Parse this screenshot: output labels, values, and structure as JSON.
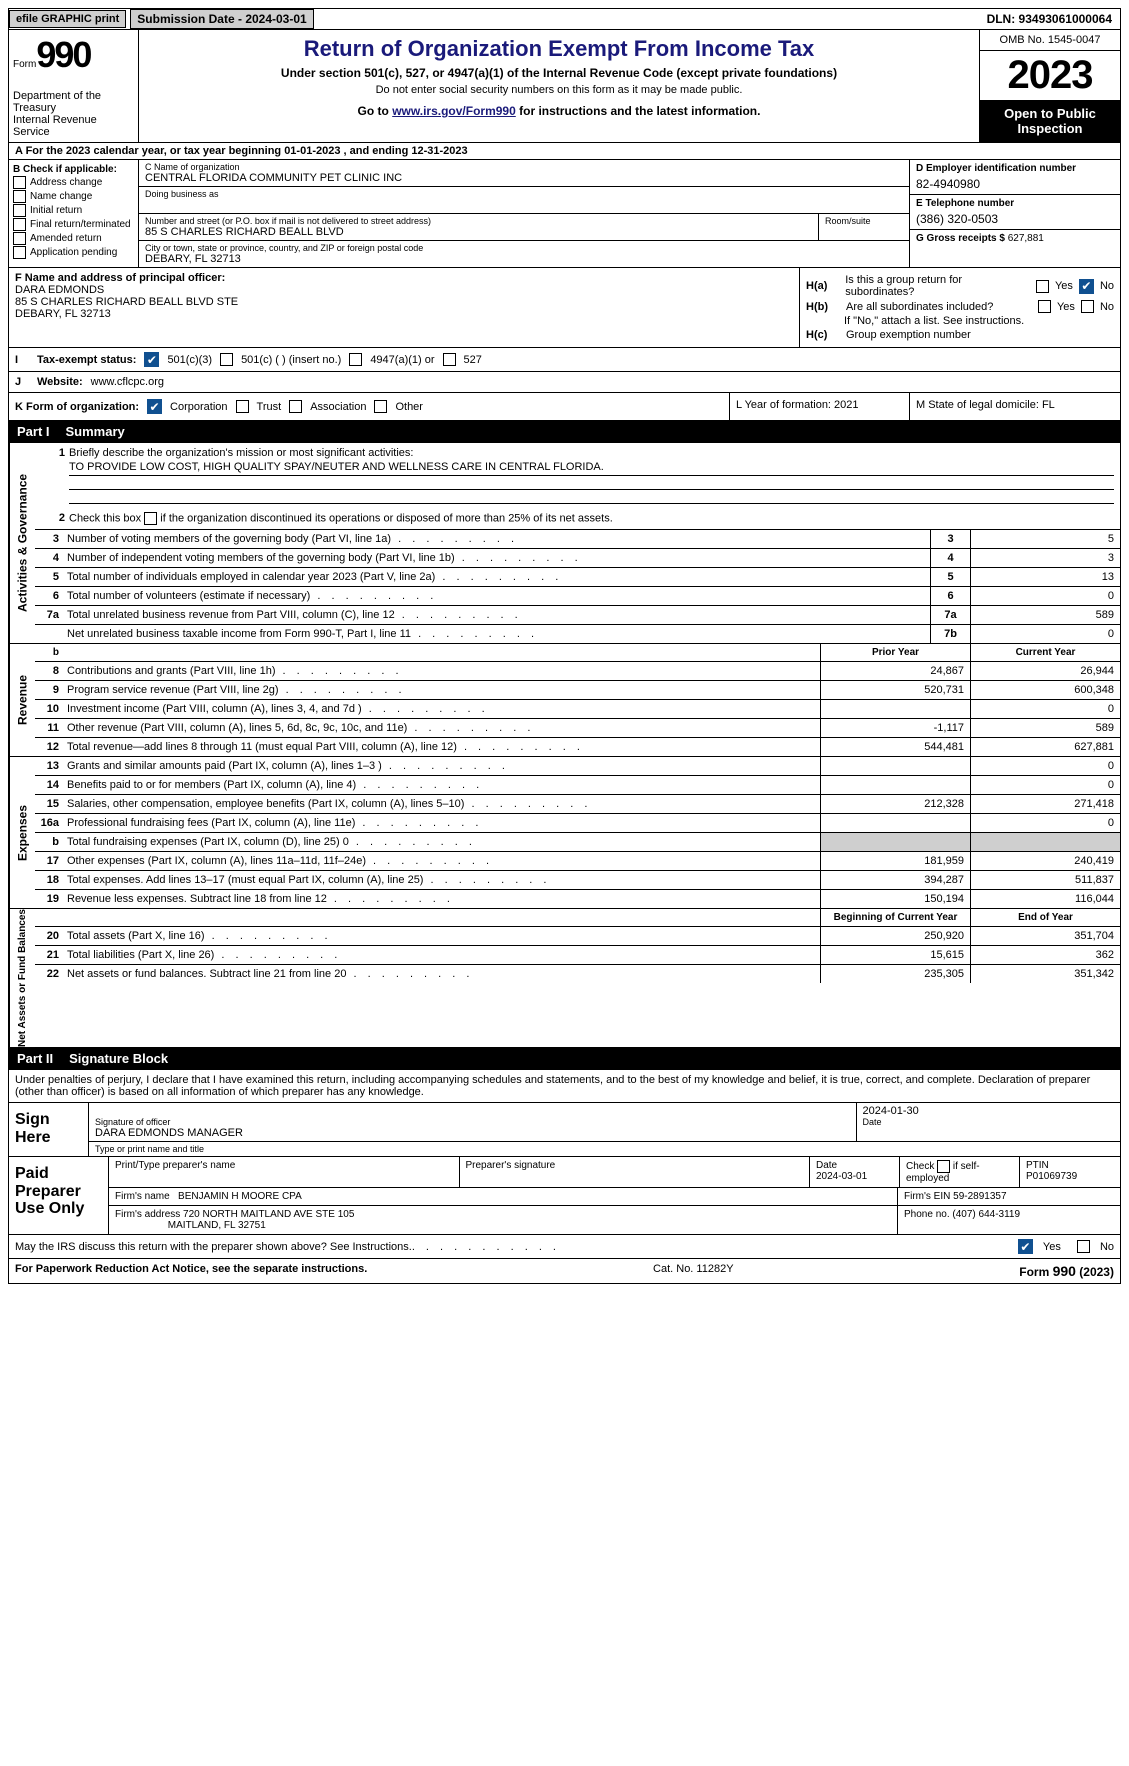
{
  "topbar": {
    "efile": "efile GRAPHIC print",
    "submission": "Submission Date - 2024-03-01",
    "dln": "DLN: 93493061000064"
  },
  "header": {
    "form_label": "Form",
    "form_no": "990",
    "dept": "Department of the Treasury\nInternal Revenue Service",
    "title": "Return of Organization Exempt From Income Tax",
    "sub": "Under section 501(c), 527, or 4947(a)(1) of the Internal Revenue Code (except private foundations)",
    "ssn": "Do not enter social security numbers on this form as it may be made public.",
    "go_prefix": "Go to ",
    "go_link": "www.irs.gov/Form990",
    "go_suffix": " for instructions and the latest information.",
    "omb": "OMB No. 1545-0047",
    "year": "2023",
    "open": "Open to Public Inspection"
  },
  "cal_year": "A For the 2023 calendar year, or tax year beginning 01-01-2023   , and ending 12-31-2023",
  "B": {
    "label": "B Check if applicable:",
    "opts": [
      "Address change",
      "Name change",
      "Initial return",
      "Final return/terminated",
      "Amended return",
      "Application pending"
    ]
  },
  "C": {
    "name_lbl": "C Name of organization",
    "name": "CENTRAL FLORIDA COMMUNITY PET CLINIC INC",
    "dba_lbl": "Doing business as",
    "dba": "",
    "street_lbl": "Number and street (or P.O. box if mail is not delivered to street address)",
    "street": "85 S CHARLES RICHARD BEALL BLVD",
    "room_lbl": "Room/suite",
    "room": "",
    "city_lbl": "City or town, state or province, country, and ZIP or foreign postal code",
    "city": "DEBARY, FL  32713"
  },
  "D": {
    "lbl": "D Employer identification number",
    "val": "82-4940980"
  },
  "E": {
    "lbl": "E Telephone number",
    "val": "(386) 320-0503"
  },
  "G": {
    "lbl": "G Gross receipts $",
    "val": "627,881"
  },
  "F": {
    "lbl": "F  Name and address of principal officer:",
    "l1": "DARA EDMONDS",
    "l2": "85 S CHARLES RICHARD BEALL BLVD STE",
    "l3": "DEBARY, FL  32713"
  },
  "H": {
    "a": "Is this a group return for subordinates?",
    "b": "Are all subordinates included?",
    "note": "If \"No,\" attach a list. See instructions.",
    "c": "Group exemption number"
  },
  "I": {
    "lbl": "Tax-exempt status:",
    "o1": "501(c)(3)",
    "o2": "501(c) (  ) (insert no.)",
    "o3": "4947(a)(1) or",
    "o4": "527"
  },
  "J": {
    "lbl": "Website:",
    "val": "www.cflcpc.org"
  },
  "K": {
    "lbl": "K Form of organization:",
    "opts": [
      "Corporation",
      "Trust",
      "Association",
      "Other"
    ]
  },
  "L": "L Year of formation: 2021",
  "M": "M State of legal domicile: FL",
  "partI": "Part I",
  "partI_t": "Summary",
  "mission": {
    "q1": "Briefly describe the organization's mission or most significant activities:",
    "ans": "TO PROVIDE LOW COST, HIGH QUALITY SPAY/NEUTER AND WELLNESS CARE IN CENTRAL FLORIDA.",
    "q2": "Check this box      if the organization discontinued its operations or disposed of more than 25% of its net assets."
  },
  "gov_lines": [
    {
      "n": "3",
      "d": "Number of voting members of the governing body (Part VI, line 1a)",
      "c": "3",
      "v": "5"
    },
    {
      "n": "4",
      "d": "Number of independent voting members of the governing body (Part VI, line 1b)",
      "c": "4",
      "v": "3"
    },
    {
      "n": "5",
      "d": "Total number of individuals employed in calendar year 2023 (Part V, line 2a)",
      "c": "5",
      "v": "13"
    },
    {
      "n": "6",
      "d": "Total number of volunteers (estimate if necessary)",
      "c": "6",
      "v": "0"
    },
    {
      "n": "7a",
      "d": "Total unrelated business revenue from Part VIII, column (C), line 12",
      "c": "7a",
      "v": "589"
    },
    {
      "n": "",
      "d": "Net unrelated business taxable income from Form 990-T, Part I, line 11",
      "c": "7b",
      "v": "0"
    }
  ],
  "rev_hdr": {
    "prior": "Prior Year",
    "curr": "Current Year"
  },
  "rev_lines": [
    {
      "n": "8",
      "d": "Contributions and grants (Part VIII, line 1h)",
      "p": "24,867",
      "c": "26,944"
    },
    {
      "n": "9",
      "d": "Program service revenue (Part VIII, line 2g)",
      "p": "520,731",
      "c": "600,348"
    },
    {
      "n": "10",
      "d": "Investment income (Part VIII, column (A), lines 3, 4, and 7d )",
      "p": "",
      "c": "0"
    },
    {
      "n": "11",
      "d": "Other revenue (Part VIII, column (A), lines 5, 6d, 8c, 9c, 10c, and 11e)",
      "p": "-1,117",
      "c": "589"
    },
    {
      "n": "12",
      "d": "Total revenue—add lines 8 through 11 (must equal Part VIII, column (A), line 12)",
      "p": "544,481",
      "c": "627,881"
    }
  ],
  "exp_lines": [
    {
      "n": "13",
      "d": "Grants and similar amounts paid (Part IX, column (A), lines 1–3 )",
      "p": "",
      "c": "0"
    },
    {
      "n": "14",
      "d": "Benefits paid to or for members (Part IX, column (A), line 4)",
      "p": "",
      "c": "0"
    },
    {
      "n": "15",
      "d": "Salaries, other compensation, employee benefits (Part IX, column (A), lines 5–10)",
      "p": "212,328",
      "c": "271,418"
    },
    {
      "n": "16a",
      "d": "Professional fundraising fees (Part IX, column (A), line 11e)",
      "p": "",
      "c": "0"
    },
    {
      "n": "b",
      "d": "Total fundraising expenses (Part IX, column (D), line 25) 0",
      "p": "shade",
      "c": "shade"
    },
    {
      "n": "17",
      "d": "Other expenses (Part IX, column (A), lines 11a–11d, 11f–24e)",
      "p": "181,959",
      "c": "240,419"
    },
    {
      "n": "18",
      "d": "Total expenses. Add lines 13–17 (must equal Part IX, column (A), line 25)",
      "p": "394,287",
      "c": "511,837"
    },
    {
      "n": "19",
      "d": "Revenue less expenses. Subtract line 18 from line 12",
      "p": "150,194",
      "c": "116,044"
    }
  ],
  "na_hdr": {
    "prior": "Beginning of Current Year",
    "curr": "End of Year"
  },
  "na_lines": [
    {
      "n": "20",
      "d": "Total assets (Part X, line 16)",
      "p": "250,920",
      "c": "351,704"
    },
    {
      "n": "21",
      "d": "Total liabilities (Part X, line 26)",
      "p": "15,615",
      "c": "362"
    },
    {
      "n": "22",
      "d": "Net assets or fund balances. Subtract line 21 from line 20",
      "p": "235,305",
      "c": "351,342"
    }
  ],
  "partII": "Part II",
  "partII_t": "Signature Block",
  "sig_text": "Under penalties of perjury, I declare that I have examined this return, including accompanying schedules and statements, and to the best of my knowledge and belief, it is true, correct, and complete. Declaration of preparer (other than officer) is based on all information of which preparer has any knowledge.",
  "sign": {
    "hdr": "Sign Here",
    "date": "2024-01-30",
    "sig_lbl": "Signature of officer",
    "name": "DARA EDMONDS MANAGER",
    "type_lbl": "Type or print name and title",
    "date_lbl": "Date"
  },
  "prep": {
    "hdr": "Paid Preparer Use Only",
    "pt_lbl": "Print/Type preparer's name",
    "pt": "",
    "sig_lbl": "Preparer's signature",
    "date_lbl": "Date",
    "date": "2024-03-01",
    "self_lbl": "Check       if self-employed",
    "ptin_lbl": "PTIN",
    "ptin": "P01069739",
    "firm_lbl": "Firm's name",
    "firm": "BENJAMIN H MOORE CPA",
    "ein_lbl": "Firm's EIN",
    "ein": "59-2891357",
    "addr_lbl": "Firm's address",
    "addr1": "720 NORTH MAITLAND AVE STE 105",
    "addr2": "MAITLAND, FL  32751",
    "phone_lbl": "Phone no.",
    "phone": "(407) 644-3119"
  },
  "discuss": "May the IRS discuss this return with the preparer shown above? See Instructions.",
  "footer": {
    "left": "For Paperwork Reduction Act Notice, see the separate instructions.",
    "cat": "Cat. No. 11282Y",
    "form": "Form 990 (2023)"
  },
  "vtabs": {
    "gov": "Activities & Governance",
    "rev": "Revenue",
    "exp": "Expenses",
    "na": "Net Assets or Fund Balances"
  }
}
